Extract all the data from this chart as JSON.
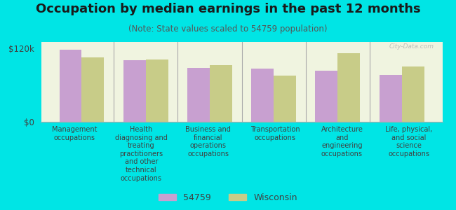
{
  "title": "Occupation by median earnings in the past 12 months",
  "subtitle": "(Note: State values scaled to 54759 population)",
  "background_color": "#00e5e5",
  "plot_bg_color": "#f0f4e0",
  "bar_color_54759": "#c8a0d0",
  "bar_color_wi": "#c8cc88",
  "categories": [
    "Management\noccupations",
    "Health\ndiagnosing and\ntreating\npractitioners\nand other\ntechnical\noccupations",
    "Business and\nfinancial\noperations\noccupations",
    "Transportation\noccupations",
    "Architecture\nand\nengineering\noccupations",
    "Life, physical,\nand social\nscience\noccupations"
  ],
  "values_54759": [
    118000,
    100000,
    88000,
    87000,
    83000,
    76000
  ],
  "values_wi": [
    105000,
    102000,
    92000,
    75000,
    112000,
    90000
  ],
  "ylim": [
    0,
    130000
  ],
  "yticks": [
    0,
    120000
  ],
  "ytick_labels": [
    "$0",
    "$120k"
  ],
  "legend_54759": "54759",
  "legend_wi": "Wisconsin",
  "watermark": "City-Data.com",
  "title_fontsize": 13,
  "subtitle_fontsize": 8.5,
  "label_fontsize": 7,
  "tick_fontsize": 8.5
}
